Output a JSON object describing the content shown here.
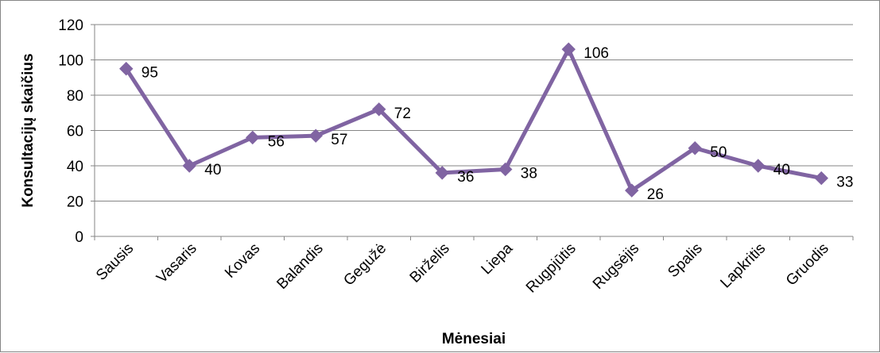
{
  "chart_data": {
    "type": "line",
    "xlabel": "Mėnesiai",
    "ylabel": "Konsultacijų skaičius",
    "ylim": [
      0,
      120
    ],
    "yticks": [
      0,
      20,
      40,
      60,
      80,
      100,
      120
    ],
    "grid": true,
    "categories": [
      "Sausis",
      "Vasaris",
      "Kovas",
      "Balandis",
      "Gegužė",
      "Birželis",
      "Liepa",
      "Rugpjūtis",
      "Rugsėjis",
      "Spalis",
      "Lapkritis",
      "Gruodis"
    ],
    "series": [
      {
        "values": [
          95,
          40,
          56,
          57,
          72,
          36,
          38,
          106,
          26,
          50,
          40,
          33
        ],
        "color": "#8064A2",
        "marker": "diamond",
        "data_labels": true
      }
    ]
  }
}
